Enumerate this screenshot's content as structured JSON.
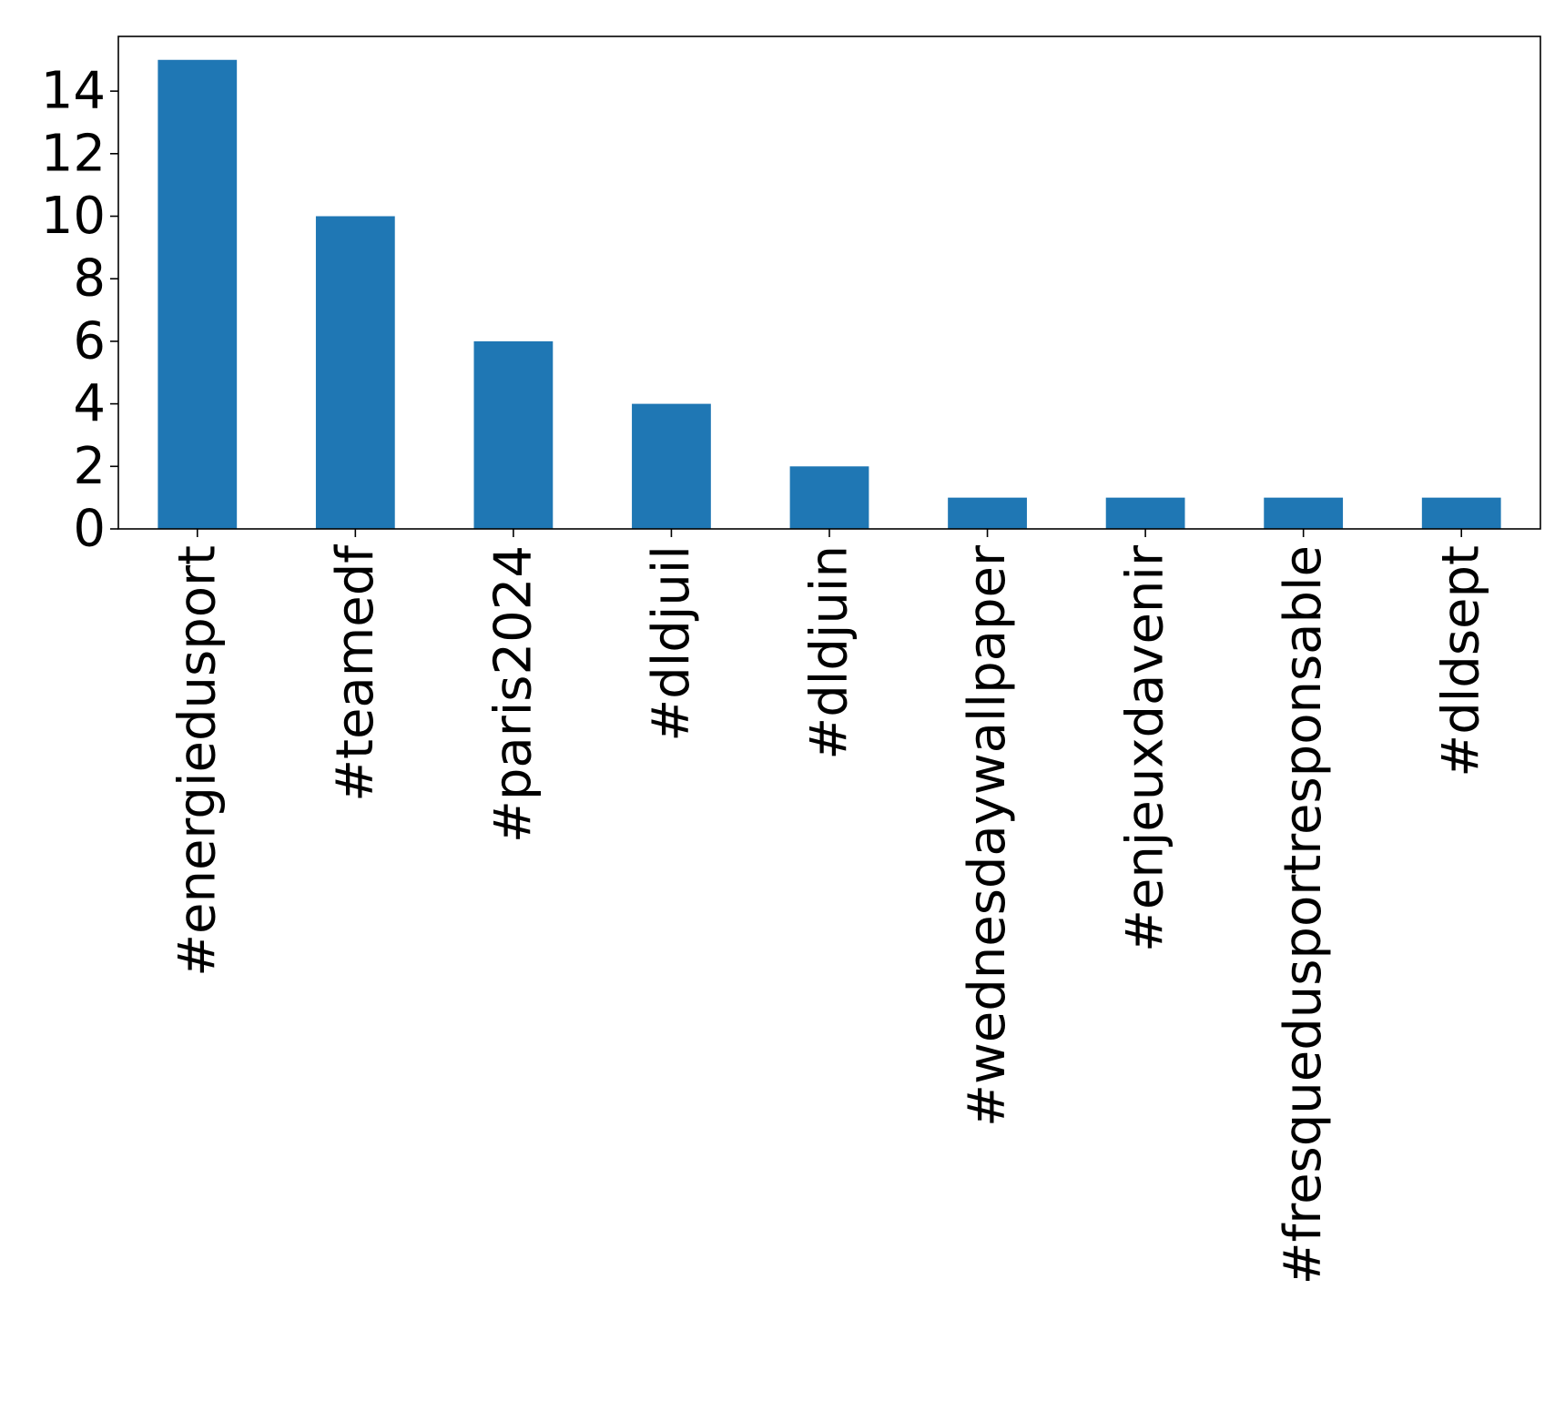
{
  "chart_data": {
    "type": "bar",
    "title": "",
    "xlabel": "",
    "ylabel": "",
    "categories": [
      "#energiedusport",
      "#teamedf",
      "#paris2024",
      "#dldjuil",
      "#dldjuin",
      "#wednesdaywallpaper",
      "#enjeuxdavenir",
      "#fresquedusportresponsable",
      "#dldsept"
    ],
    "values": [
      15,
      10,
      6,
      4,
      2,
      1,
      1,
      1,
      1
    ],
    "ylim": [
      0,
      15.75
    ],
    "yticks": [
      0,
      2,
      4,
      6,
      8,
      10,
      12,
      14
    ],
    "bar_color": "#1f77b4",
    "grid": false,
    "legend": "none"
  }
}
